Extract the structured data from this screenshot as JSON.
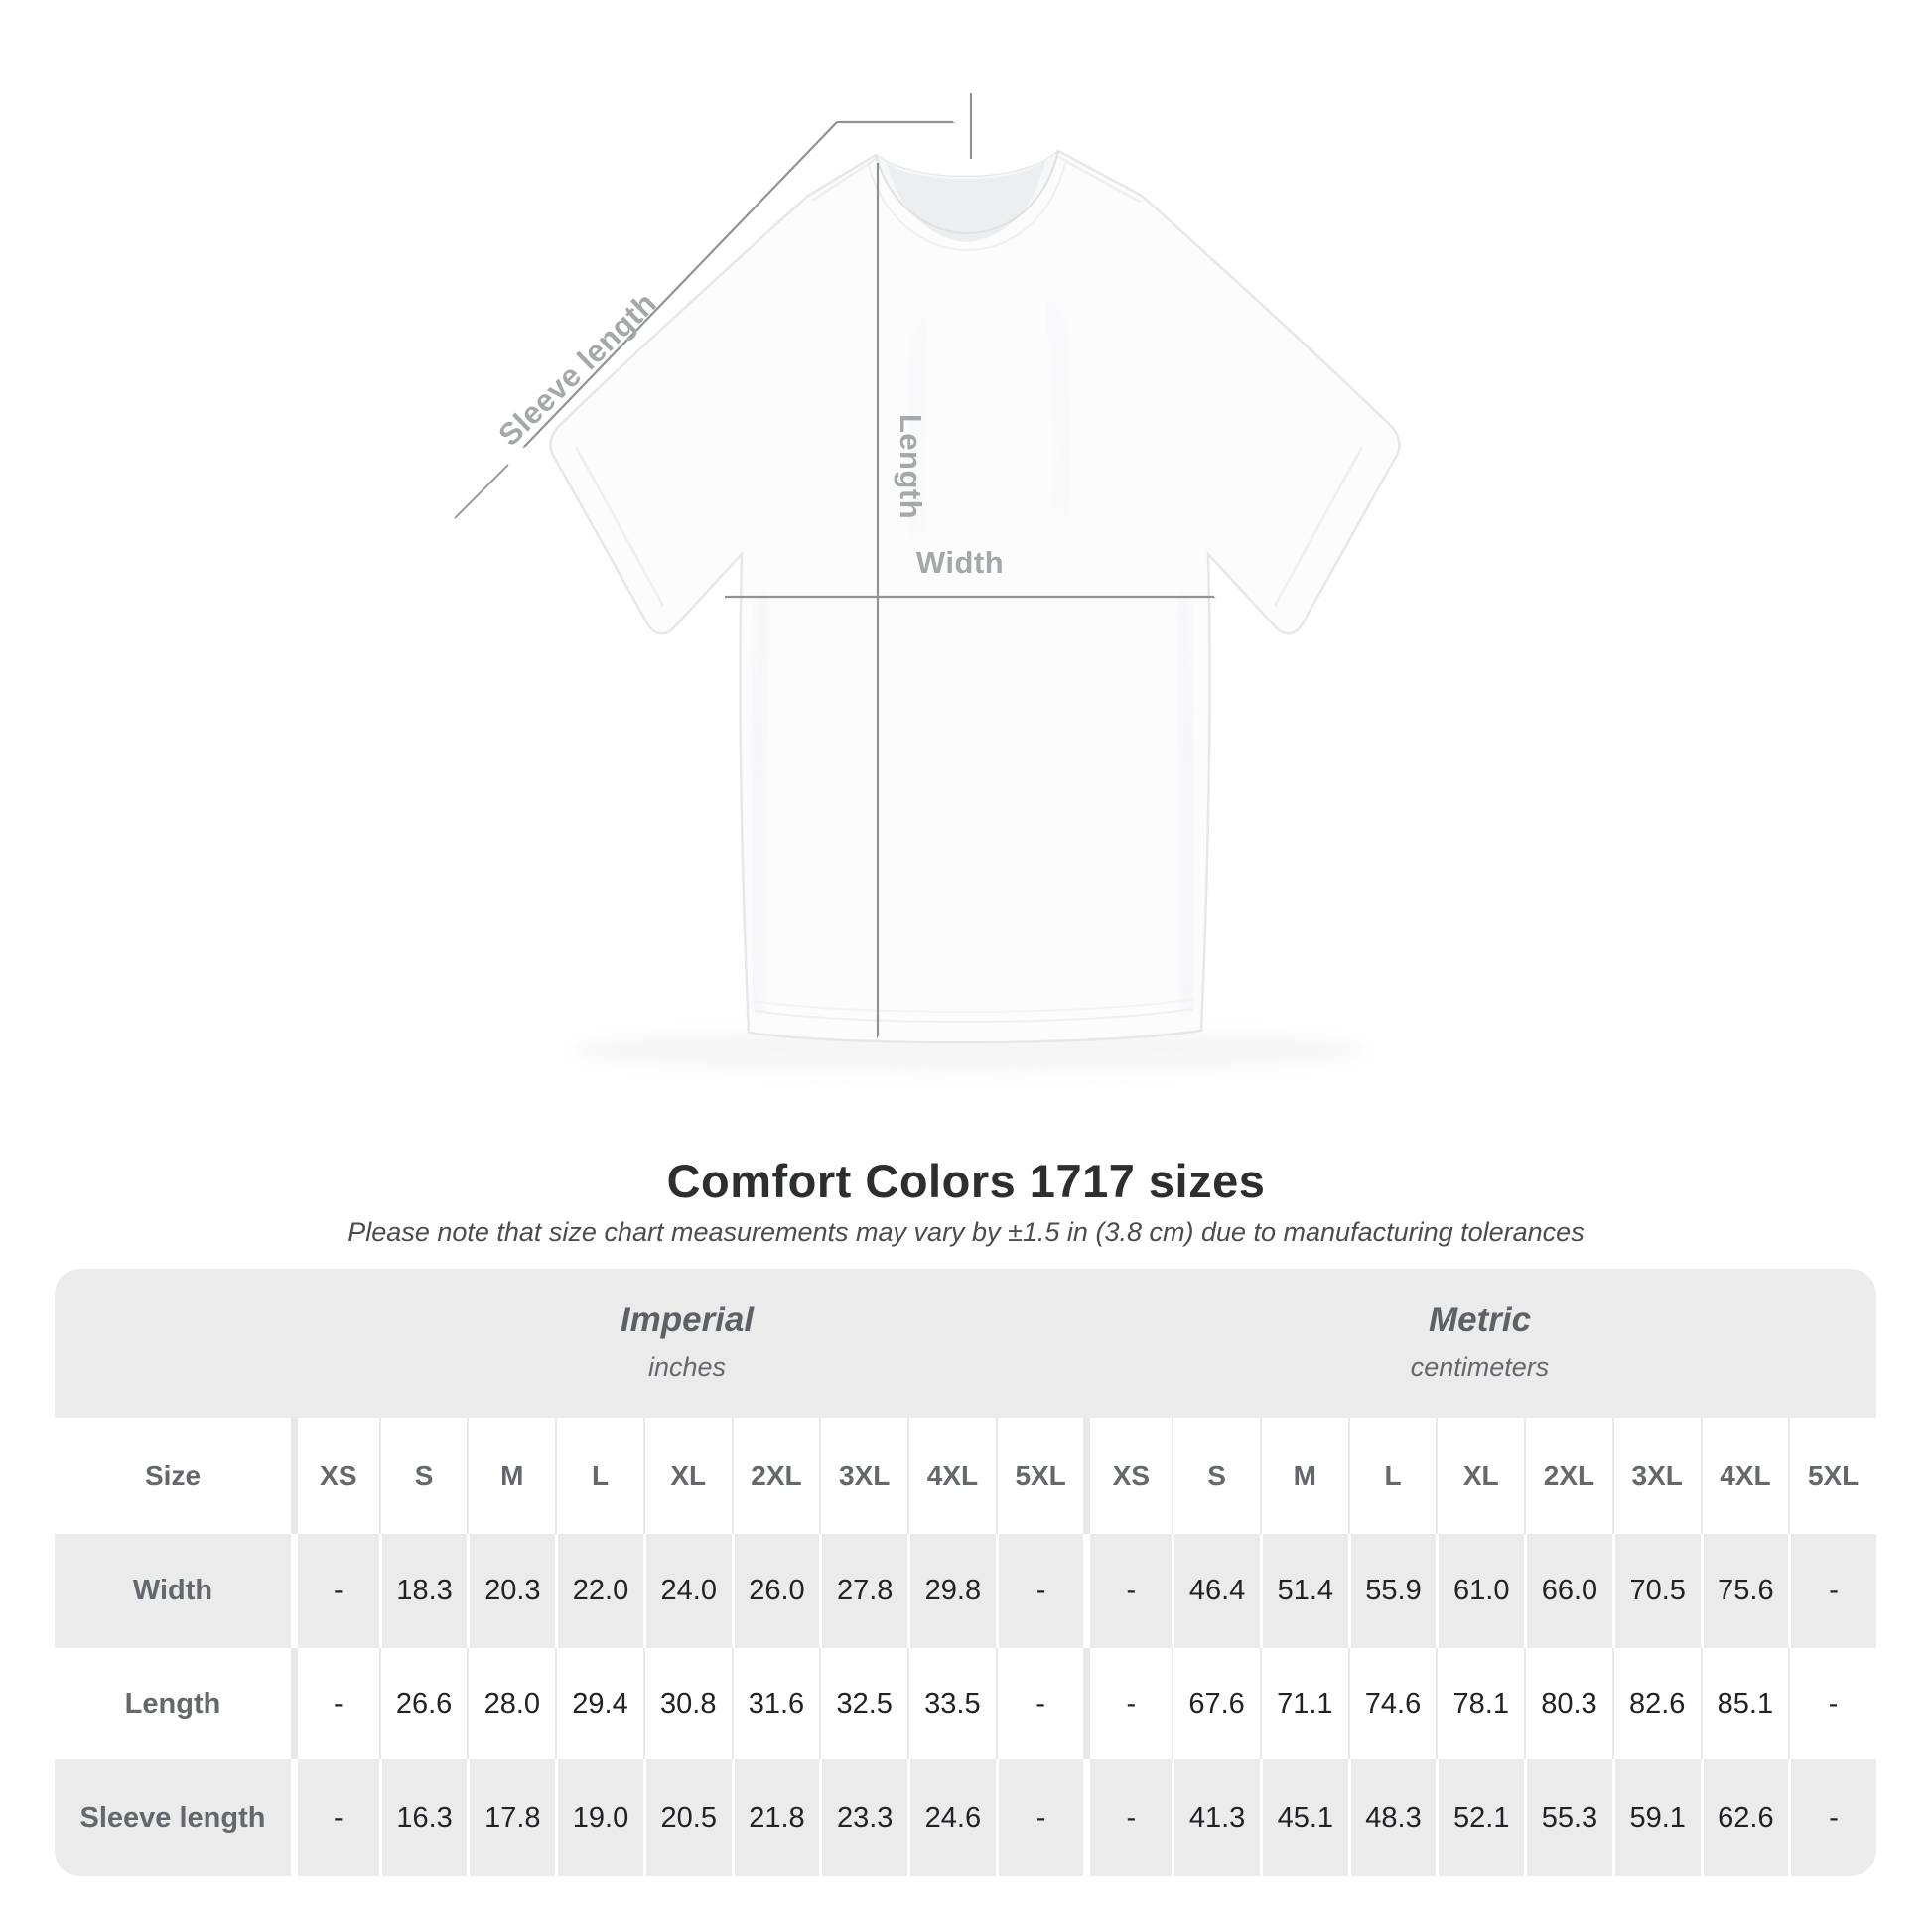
{
  "diagram": {
    "labels": {
      "sleeve_length": "Sleeve length",
      "length": "Length",
      "width": "Width"
    },
    "line_color": "#8f9397",
    "label_color": "#a5a8ab"
  },
  "heading": {
    "title": "Comfort Colors 1717 sizes",
    "subtitle": "Please note that size chart measurements may vary by ±1.5 in (3.8 cm) due to manufacturing tolerances"
  },
  "size_table": {
    "corner_label": "Size",
    "groups": [
      {
        "label": "Imperial",
        "unit": "inches"
      },
      {
        "label": "Metric",
        "unit": "centimeters"
      }
    ],
    "sizes": [
      "XS",
      "S",
      "M",
      "L",
      "XL",
      "2XL",
      "3XL",
      "4XL",
      "5XL"
    ],
    "rows": [
      {
        "label": "Width",
        "imperial": [
          "-",
          "18.3",
          "20.3",
          "22.0",
          "24.0",
          "26.0",
          "27.8",
          "29.8",
          "-"
        ],
        "metric": [
          "-",
          "46.4",
          "51.4",
          "55.9",
          "61.0",
          "66.0",
          "70.5",
          "75.6",
          "-"
        ]
      },
      {
        "label": "Length",
        "imperial": [
          "-",
          "26.6",
          "28.0",
          "29.4",
          "30.8",
          "31.6",
          "32.5",
          "33.5",
          "-"
        ],
        "metric": [
          "-",
          "67.6",
          "71.1",
          "74.6",
          "78.1",
          "80.3",
          "82.6",
          "85.1",
          "-"
        ]
      },
      {
        "label": "Sleeve length",
        "imperial": [
          "-",
          "16.3",
          "17.8",
          "19.0",
          "20.5",
          "21.8",
          "23.3",
          "24.6",
          "-"
        ],
        "metric": [
          "-",
          "41.3",
          "45.1",
          "48.3",
          "52.1",
          "55.3",
          "59.1",
          "62.6",
          "-"
        ]
      }
    ],
    "colors": {
      "band_gray": "#ebebeb",
      "header_text": "#64686c",
      "value_text": "#202225"
    }
  }
}
